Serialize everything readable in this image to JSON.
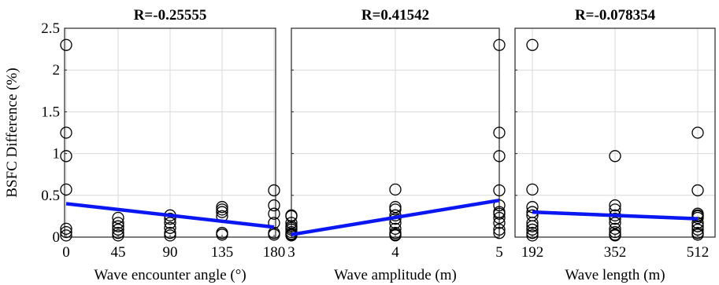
{
  "figure": {
    "ylabel": "BSFC Difference (%)",
    "colors": {
      "fit_line": "#0a17f2",
      "markers": "#000000",
      "grid": "#d9d9d9",
      "axes": "#262626"
    }
  },
  "chart_data": [
    {
      "type": "scatter",
      "title": "R=-0.25555",
      "xlabel": "Wave encounter angle (°)",
      "ylabel": "BSFC Difference (%)",
      "xlim": [
        0,
        180
      ],
      "ylim": [
        0,
        2.5
      ],
      "xticks": [
        0,
        45,
        90,
        135,
        180
      ],
      "xtick_labels": [
        "0",
        "45",
        "90",
        "135",
        "180"
      ],
      "yticks": [
        0,
        0.5,
        1,
        1.5,
        2,
        2.5
      ],
      "ytick_labels": [
        "0",
        "0.5",
        "1",
        "1.5",
        "2",
        "2.5"
      ],
      "grid": true,
      "series": [
        {
          "kind": "points",
          "x": [
            0,
            0,
            0,
            0,
            0,
            0,
            0,
            45,
            45,
            45,
            45,
            45,
            45,
            90,
            90,
            90,
            90,
            90,
            90,
            135,
            135,
            135,
            135,
            135,
            135,
            180,
            180,
            180,
            180,
            180,
            180
          ],
          "y": [
            2.3,
            1.25,
            0.97,
            0.57,
            0.1,
            0.06,
            0.02,
            0.23,
            0.17,
            0.13,
            0.09,
            0.05,
            0.02,
            0.26,
            0.22,
            0.17,
            0.11,
            0.05,
            0.02,
            0.36,
            0.33,
            0.3,
            0.25,
            0.05,
            0.03,
            0.56,
            0.38,
            0.28,
            0.17,
            0.05,
            0.03
          ]
        },
        {
          "kind": "fit",
          "x": [
            0,
            180
          ],
          "y": [
            0.4,
            0.12
          ]
        }
      ]
    },
    {
      "type": "scatter",
      "title": "R=0.41542",
      "xlabel": "Wave amplitude (m)",
      "xlim": [
        3,
        5
      ],
      "ylim": [
        0,
        2.5
      ],
      "xticks": [
        3,
        4,
        5
      ],
      "xtick_labels": [
        "3",
        "4",
        "5"
      ],
      "yticks": [
        0,
        0.5,
        1,
        1.5,
        2,
        2.5
      ],
      "ytick_labels": [],
      "grid": true,
      "series": [
        {
          "kind": "points",
          "x": [
            3,
            3,
            3,
            3,
            3,
            3,
            3,
            3,
            3,
            3,
            4,
            4,
            4,
            4,
            4,
            4,
            4,
            4,
            4,
            4,
            5,
            5,
            5,
            5,
            5,
            5,
            5,
            5,
            5,
            5,
            5
          ],
          "y": [
            0.26,
            0.25,
            0.17,
            0.13,
            0.11,
            0.09,
            0.06,
            0.04,
            0.03,
            0.02,
            0.57,
            0.36,
            0.33,
            0.26,
            0.22,
            0.17,
            0.1,
            0.05,
            0.03,
            0.02,
            2.3,
            1.25,
            0.97,
            0.56,
            0.38,
            0.3,
            0.28,
            0.23,
            0.17,
            0.09,
            0.05
          ]
        },
        {
          "kind": "fit",
          "x": [
            3,
            5
          ],
          "y": [
            0.03,
            0.44
          ]
        }
      ]
    },
    {
      "type": "scatter",
      "title": "R=-0.078354",
      "xlabel": "Wave length (m)",
      "xlim": [
        192,
        512
      ],
      "ylim": [
        0,
        2.5
      ],
      "xticks": [
        192,
        352,
        512
      ],
      "xtick_labels": [
        "192",
        "352",
        "512"
      ],
      "yticks": [
        0,
        0.5,
        1,
        1.5,
        2,
        2.5
      ],
      "ytick_labels": [],
      "grid": true,
      "series": [
        {
          "kind": "points",
          "x": [
            192,
            192,
            192,
            192,
            192,
            192,
            192,
            192,
            192,
            192,
            352,
            352,
            352,
            352,
            352,
            352,
            352,
            352,
            352,
            352,
            512,
            512,
            512,
            512,
            512,
            512,
            512,
            512,
            512,
            512,
            512
          ],
          "y": [
            2.3,
            0.57,
            0.36,
            0.3,
            0.26,
            0.17,
            0.13,
            0.09,
            0.05,
            0.02,
            0.97,
            0.38,
            0.33,
            0.26,
            0.22,
            0.17,
            0.1,
            0.06,
            0.03,
            0.02,
            1.25,
            0.56,
            0.28,
            0.26,
            0.25,
            0.23,
            0.17,
            0.13,
            0.09,
            0.05,
            0.03
          ]
        },
        {
          "kind": "fit",
          "x": [
            192,
            512
          ],
          "y": [
            0.3,
            0.22
          ]
        }
      ]
    }
  ]
}
